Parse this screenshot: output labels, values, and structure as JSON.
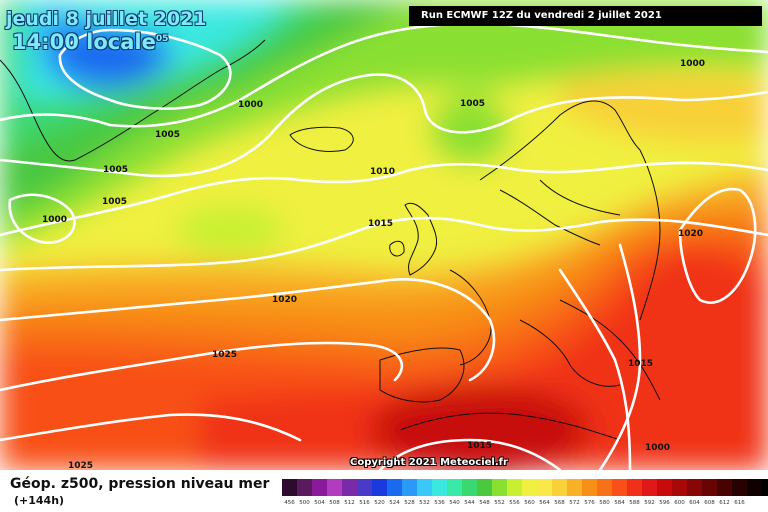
{
  "header": {
    "date": "jeudi 8 juillet 2021",
    "time": "14:00 locale",
    "time_suffix": "05",
    "run": "Run ECMWF 12Z du vendredi 2 juillet 2021"
  },
  "copyright": "Copyright 2021 Meteociel.fr",
  "legend": {
    "title": "Géop. z500, pression niveau mer",
    "subtitle": "(+144h)",
    "colors": [
      "#2e0a2e",
      "#5a1a5e",
      "#8a1a9a",
      "#b23cc0",
      "#7a2aa8",
      "#4a3ac8",
      "#1a3ae0",
      "#1a6af0",
      "#2a9af8",
      "#3ac8f8",
      "#3ae8e0",
      "#3ae8a8",
      "#3ad870",
      "#4ac840",
      "#8ae030",
      "#c8f030",
      "#f0f040",
      "#f8e848",
      "#f8d038",
      "#f8b028",
      "#f89018",
      "#f87018",
      "#f85018",
      "#f03018",
      "#e01818",
      "#c80a0a",
      "#a80808",
      "#880606",
      "#680404",
      "#480202",
      "#280000",
      "#100000",
      "#000000"
    ],
    "ticks": [
      "456",
      "500",
      "504",
      "508",
      "512",
      "516",
      "520",
      "524",
      "528",
      "532",
      "536",
      "540",
      "544",
      "548",
      "552",
      "556",
      "560",
      "564",
      "568",
      "572",
      "576",
      "580",
      "584",
      "588",
      "592",
      "596",
      "600",
      "604",
      "608",
      "612",
      "616",
      "",
      ""
    ]
  },
  "isobar_labels": [
    "1000",
    "1000",
    "1005",
    "1005",
    "1005",
    "1000",
    "1010",
    "1015",
    "1020",
    "1025",
    "1025",
    "1020",
    "1015",
    "1015",
    "1005",
    "1000"
  ]
}
